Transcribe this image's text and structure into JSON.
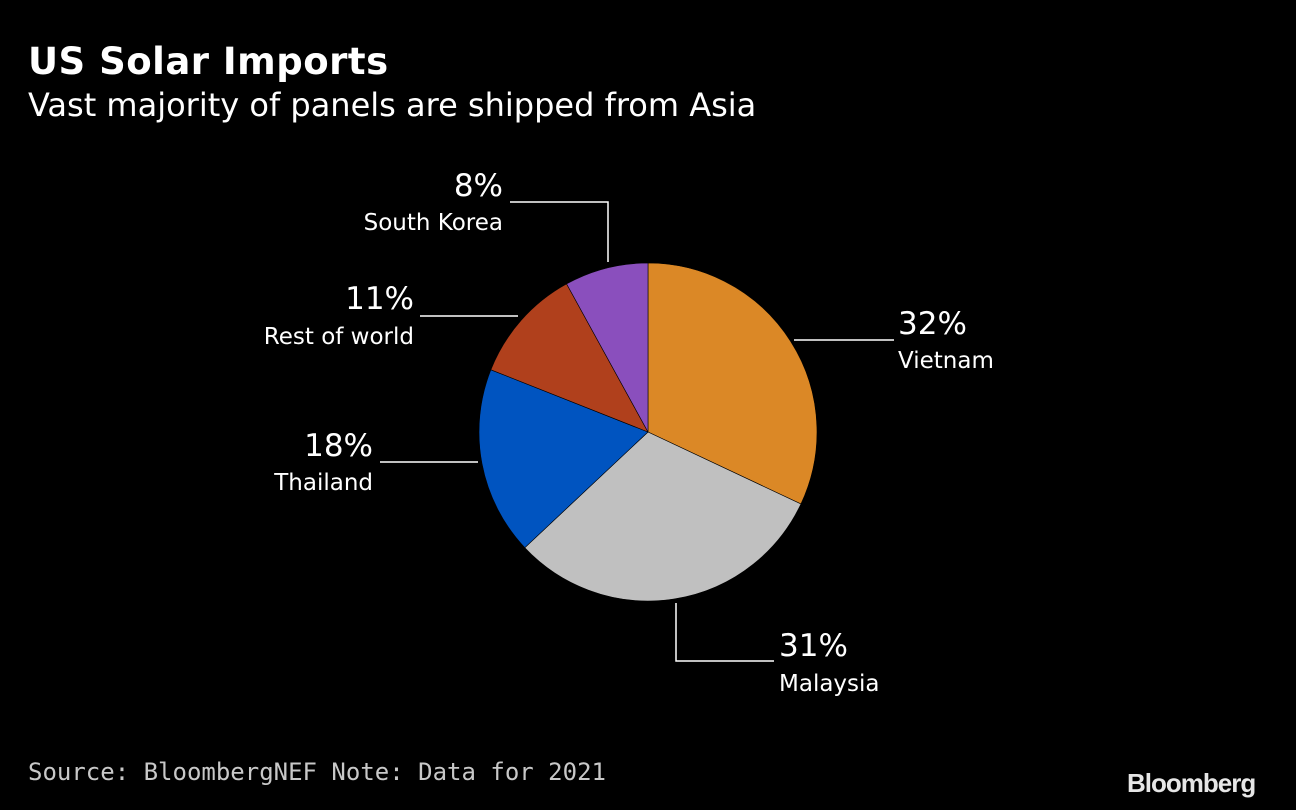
{
  "title": "US Solar Imports",
  "subtitle": "Vast majority of panels are shipped from Asia",
  "source": "Source: BloombergNEF Note: Data for 2021",
  "logo": "Bloomberg",
  "chart_data": {
    "type": "pie",
    "title": "US Solar Imports",
    "subtitle": "Vast majority of panels are shipped from Asia",
    "slices": [
      {
        "label": "Vietnam",
        "value": 32,
        "value_label": "32%",
        "color": "#db8826"
      },
      {
        "label": "Malaysia",
        "value": 31,
        "value_label": "31%",
        "color": "#c0c0c0"
      },
      {
        "label": "Thailand",
        "value": 18,
        "value_label": "18%",
        "color": "#0054c0"
      },
      {
        "label": "Rest of world",
        "value": 11,
        "value_label": "11%",
        "color": "#b0401c"
      },
      {
        "label": "South Korea",
        "value": 8,
        "value_label": "8%",
        "color": "#8a4fbd"
      }
    ],
    "start_angle": "12 o'clock",
    "direction": "clockwise"
  }
}
